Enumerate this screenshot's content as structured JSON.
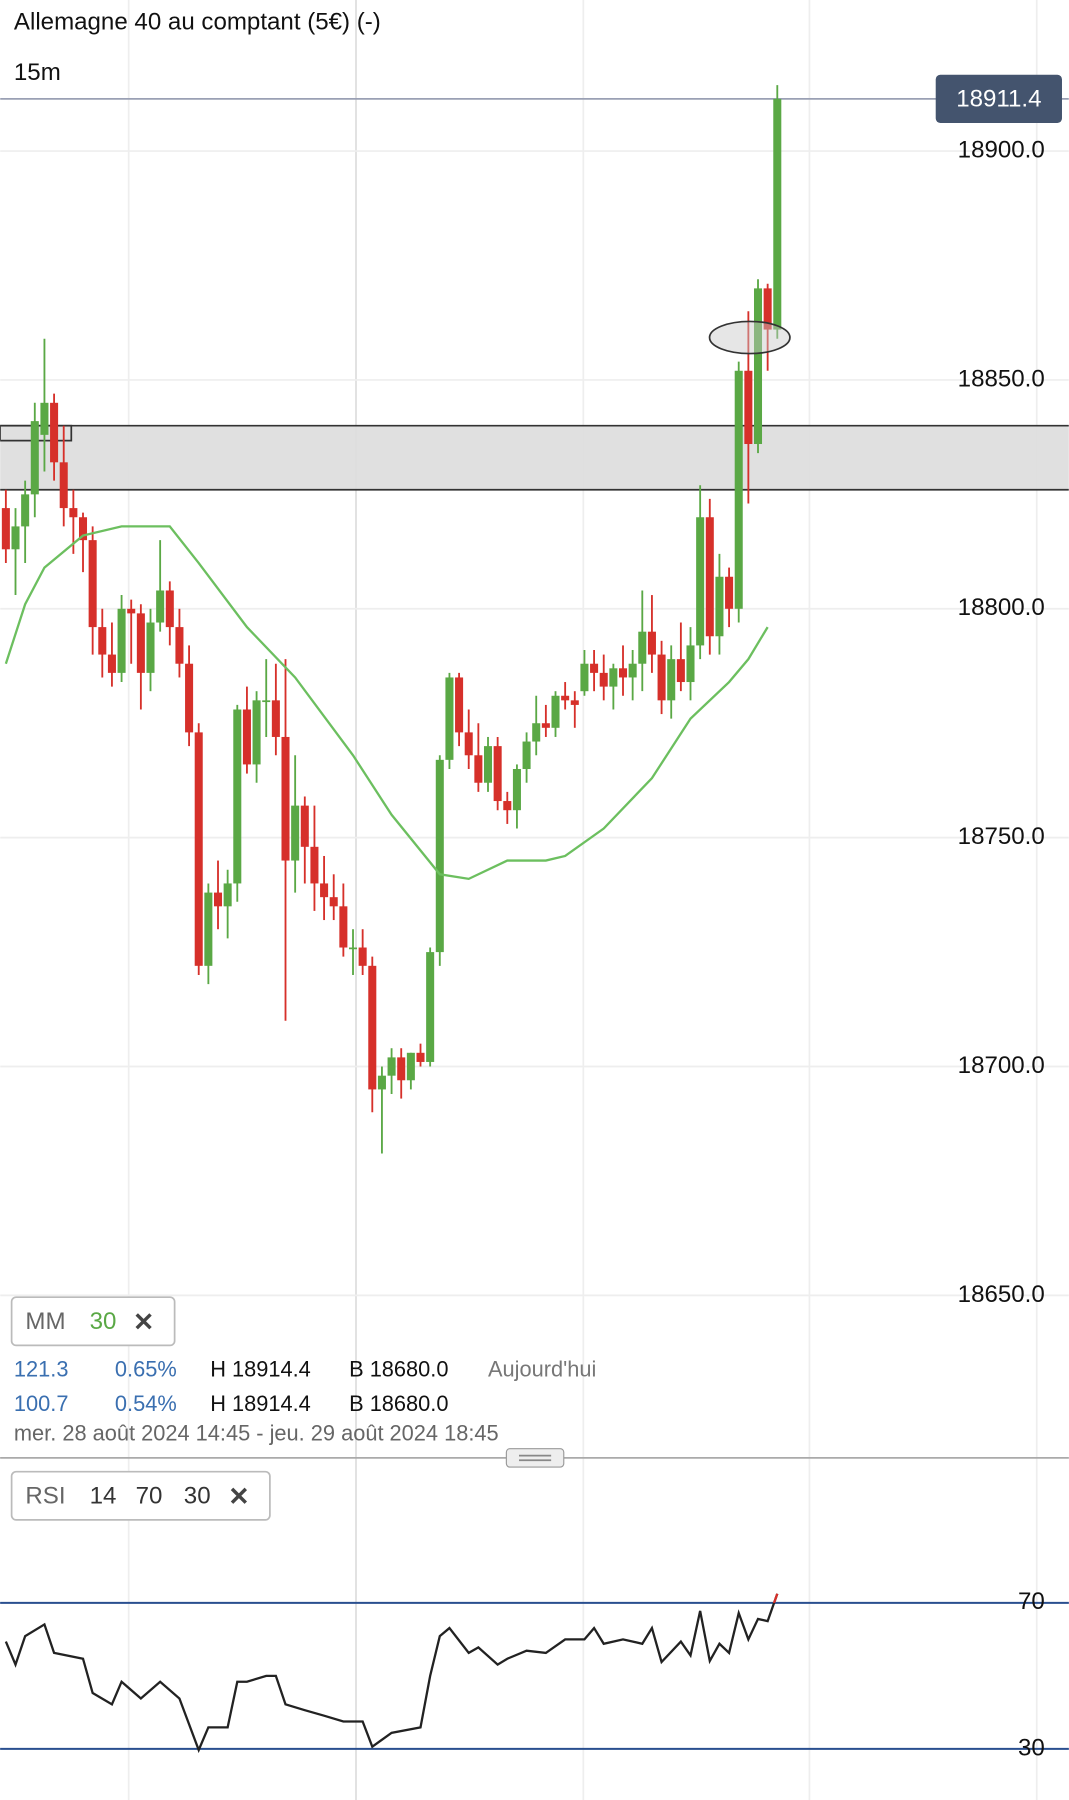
{
  "chart_data": {
    "type": "candlestick",
    "title": "Allemagne 40 au comptant (5€) (-)",
    "timeframe": "15m",
    "ylim": [
      18615,
      18933
    ],
    "yticks": [
      {
        "value": 18650,
        "label": "18650.0"
      },
      {
        "value": 18700,
        "label": "18700.0"
      },
      {
        "value": 18750,
        "label": "18750.0"
      },
      {
        "value": 18800,
        "label": "18800.0"
      },
      {
        "value": 18850,
        "label": "18850.0"
      },
      {
        "value": 18900,
        "label": "18900.0"
      }
    ],
    "grid": true,
    "colors": {
      "up": "#5aa845",
      "down": "#d6302a"
    },
    "open": [
      18822,
      18813,
      18818,
      18825,
      18838,
      18845,
      18832,
      18822,
      18820,
      18815,
      18796,
      18790,
      18786,
      18800,
      18799,
      18786,
      18797,
      18804,
      18796,
      18788,
      18773,
      18722,
      18738,
      18735,
      18740,
      18778,
      18766,
      18780,
      18780,
      18772,
      18745,
      18757,
      18748,
      18740,
      18737,
      18735,
      18726,
      18726,
      18722,
      18695,
      18698,
      18702,
      18697,
      18703,
      18701,
      18725,
      18767,
      18785,
      18773,
      18768,
      18762,
      18770,
      18758,
      18756,
      18765,
      18771,
      18775,
      18774,
      18781,
      18780,
      18782,
      18788,
      18786,
      18783,
      18787,
      18785,
      18788,
      18795,
      18790,
      18780,
      18789,
      18784,
      18792,
      18820,
      18794,
      18807,
      18800,
      18852,
      18836,
      18870,
      18861
    ],
    "high": [
      18826,
      18822,
      18828,
      18845,
      18859,
      18847,
      18840,
      18826,
      18821,
      18818,
      18800,
      18797,
      18803,
      18802,
      18801,
      18800,
      18815,
      18806,
      18800,
      18792,
      18775,
      18740,
      18745,
      18743,
      18779,
      18783,
      18782,
      18789,
      18788,
      18789,
      18768,
      18759,
      18757,
      18746,
      18742,
      18740,
      18730,
      18730,
      18724,
      18700,
      18704,
      18704,
      18703,
      18705,
      18726,
      18768,
      18786,
      18786,
      18778,
      18775,
      18772,
      18772,
      18760,
      18766,
      18773,
      18781,
      18779,
      18782,
      18784,
      18782,
      18791,
      18791,
      18790,
      18788,
      18792,
      18791,
      18804,
      18803,
      18793,
      18792,
      18797,
      18796,
      18827,
      18824,
      18812,
      18809,
      18854,
      18865,
      18872,
      18871,
      18914.4
    ],
    "low": [
      18810,
      18803,
      18810,
      18820,
      18830,
      18828,
      18818,
      18812,
      18808,
      18790,
      18785,
      18783,
      18784,
      18788,
      18778,
      18782,
      18795,
      18792,
      18785,
      18770,
      18720,
      18718,
      18730,
      18728,
      18736,
      18764,
      18762,
      18772,
      18768,
      18710,
      18738,
      18740,
      18734,
      18732,
      18732,
      18724,
      18720,
      18720,
      18690,
      18681,
      18694,
      18693,
      18695,
      18700,
      18700,
      18722,
      18765,
      18770,
      18765,
      18760,
      18760,
      18756,
      18753,
      18752,
      18762,
      18768,
      18772,
      18772,
      18778,
      18774,
      18781,
      18782,
      18780,
      18778,
      18781,
      18780,
      18782,
      18786,
      18777,
      18776,
      18782,
      18780,
      18789,
      18790,
      18790,
      18796,
      18797,
      18823,
      18834,
      18852,
      18859
    ],
    "close": [
      18813,
      18818,
      18825,
      18841,
      18845,
      18832,
      18822,
      18820,
      18815,
      18796,
      18790,
      18786,
      18800,
      18799,
      18786,
      18797,
      18804,
      18796,
      18788,
      18773,
      18722,
      18738,
      18735,
      18740,
      18778,
      18766,
      18780,
      18780,
      18772,
      18745,
      18757,
      18748,
      18740,
      18737,
      18735,
      18726,
      18726,
      18722,
      18695,
      18698,
      18702,
      18697,
      18703,
      18701,
      18725,
      18767,
      18785,
      18773,
      18768,
      18762,
      18770,
      18758,
      18756,
      18765,
      18771,
      18775,
      18774,
      18781,
      18780,
      18779,
      18788,
      18786,
      18783,
      18787,
      18785,
      18788,
      18795,
      18790,
      18780,
      18789,
      18784,
      18792,
      18820,
      18794,
      18807,
      18800,
      18852,
      18836,
      18870,
      18861,
      18911.4
    ],
    "zone": [
      18826,
      18840
    ],
    "ma": {
      "color": "#6cbf5f",
      "x": [
        0,
        2,
        4,
        8,
        12,
        17,
        20,
        25,
        30,
        36,
        40,
        45,
        48,
        52,
        56,
        58,
        62,
        67,
        71,
        75,
        77,
        79
      ],
      "values": [
        18788,
        18801,
        18809,
        18816,
        18818,
        18818,
        18810,
        18796,
        18785,
        18768,
        18755,
        18742,
        18741,
        18745,
        18745,
        18746,
        18752,
        18763,
        18776,
        18784,
        18789,
        18796
      ]
    },
    "legend": {
      "ma_name": "MM",
      "ma_period": "30",
      "row1": [
        "121.3",
        "0.65%",
        "H 18914.4",
        "B 18680.0",
        "Aujourd'hui"
      ],
      "row2": [
        "100.7",
        "0.54%",
        "H 18914.4",
        "B 18680.0"
      ],
      "range": "mer. 28 août 2024 14:45 - jeu. 29 août 2024 18:45"
    },
    "rsi": {
      "name": "RSI",
      "params": [
        "14",
        "70",
        "30"
      ],
      "color": "#222",
      "over_color": "#d6302a",
      "ylim": [
        16,
        105
      ],
      "yticks": [
        70,
        30
      ],
      "x": [
        0,
        1,
        2,
        4,
        5,
        8,
        9,
        11,
        12,
        14,
        16,
        18,
        20,
        21,
        23,
        24,
        25,
        27,
        28,
        29,
        31,
        33,
        35,
        37,
        38,
        40,
        43,
        44,
        45,
        46,
        48,
        49,
        51,
        52,
        54,
        56,
        58,
        60,
        61,
        62,
        64,
        66,
        67,
        68,
        70,
        71,
        72,
        73,
        74,
        75,
        76,
        77,
        78,
        79,
        80
      ],
      "values": [
        59.4,
        53.1,
        60.9,
        64.1,
        56.3,
        54.7,
        45.3,
        42.2,
        48.4,
        43.8,
        48.4,
        43.8,
        29.7,
        35.9,
        35.9,
        48.4,
        48.4,
        50,
        50,
        42.2,
        40.6,
        39.1,
        37.5,
        37.5,
        30.6,
        34.4,
        35.9,
        50,
        60.9,
        63.1,
        56.3,
        57.8,
        53.1,
        54.7,
        56.9,
        56.3,
        60,
        60,
        63.1,
        58.8,
        60,
        58.8,
        63.1,
        53.8,
        59.4,
        55.6,
        67.8,
        54.1,
        58.8,
        56.3,
        67.2,
        60,
        65.6,
        65,
        72.5
      ]
    }
  }
}
